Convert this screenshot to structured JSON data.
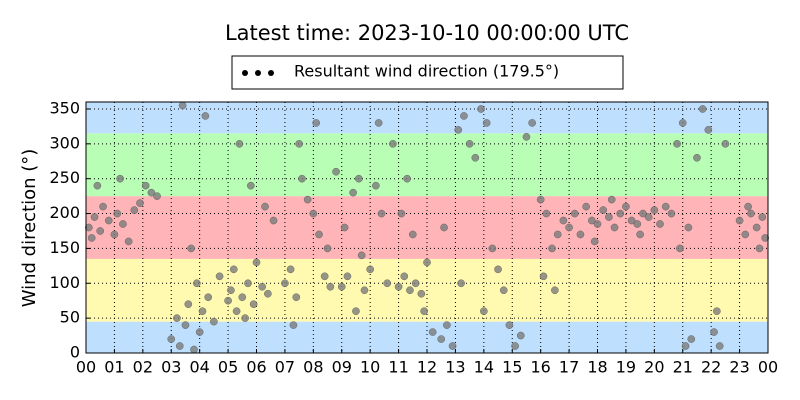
{
  "chart_data": {
    "type": "scatter",
    "title": "Latest time: 2023-10-10 00:00:00 UTC",
    "y_label": "Wind direction (°)",
    "xlim": [
      0,
      24
    ],
    "ylim": [
      0,
      360
    ],
    "xticks": [
      {
        "value": 0,
        "label": "00"
      },
      {
        "value": 1,
        "label": "01"
      },
      {
        "value": 2,
        "label": "02"
      },
      {
        "value": 3,
        "label": "03"
      },
      {
        "value": 4,
        "label": "04"
      },
      {
        "value": 5,
        "label": "05"
      },
      {
        "value": 6,
        "label": "06"
      },
      {
        "value": 7,
        "label": "07"
      },
      {
        "value": 8,
        "label": "08"
      },
      {
        "value": 9,
        "label": "09"
      },
      {
        "value": 10,
        "label": "10"
      },
      {
        "value": 11,
        "label": "11"
      },
      {
        "value": 12,
        "label": "12"
      },
      {
        "value": 13,
        "label": "13"
      },
      {
        "value": 14,
        "label": "14"
      },
      {
        "value": 15,
        "label": "15"
      },
      {
        "value": 16,
        "label": "16"
      },
      {
        "value": 17,
        "label": "17"
      },
      {
        "value": 18,
        "label": "18"
      },
      {
        "value": 19,
        "label": "19"
      },
      {
        "value": 20,
        "label": "20"
      },
      {
        "value": 21,
        "label": "21"
      },
      {
        "value": 22,
        "label": "22"
      },
      {
        "value": 23,
        "label": "23"
      },
      {
        "value": 24,
        "label": "00"
      }
    ],
    "yticks": [
      0,
      50,
      100,
      150,
      200,
      250,
      300,
      350
    ],
    "grid": true,
    "bands": [
      {
        "from": 0,
        "to": 45,
        "color": "#bfdfff"
      },
      {
        "from": 45,
        "to": 135,
        "color": "#fffab0"
      },
      {
        "from": 135,
        "to": 225,
        "color": "#ffb5b8"
      },
      {
        "from": 225,
        "to": 315,
        "color": "#b8ffb5"
      },
      {
        "from": 315,
        "to": 360,
        "color": "#bfdfff"
      }
    ],
    "series": [
      {
        "name": "Resultant wind direction (179.5°)",
        "color": "#7a7a7a",
        "x": [
          0.1,
          0.2,
          0.3,
          0.5,
          0.6,
          0.8,
          1.0,
          1.1,
          1.3,
          1.5,
          1.7,
          1.9,
          2.1,
          2.3,
          0.4,
          1.2,
          2.5,
          3.0,
          3.2,
          3.3,
          3.5,
          3.6,
          3.8,
          3.4,
          3.9,
          4.1,
          4.3,
          4.5,
          4.7,
          4.0,
          3.7,
          4.2,
          5.0,
          5.1,
          5.3,
          5.5,
          5.7,
          5.9,
          5.2,
          5.6,
          6.0,
          6.2,
          6.4,
          5.4,
          6.3,
          5.8,
          6.6,
          7.0,
          7.2,
          7.4,
          7.6,
          7.8,
          8.0,
          8.2,
          8.4,
          8.6,
          7.5,
          8.1,
          8.8,
          7.3,
          8.5,
          9.0,
          9.2,
          9.4,
          9.6,
          9.8,
          10.0,
          10.2,
          10.4,
          10.6,
          9.1,
          9.7,
          10.3,
          9.5,
          11.0,
          11.2,
          11.4,
          11.6,
          11.8,
          12.0,
          11.1,
          11.5,
          11.9,
          12.2,
          11.3,
          10.8,
          12.5,
          12.7,
          12.9,
          13.1,
          13.3,
          13.5,
          13.7,
          13.9,
          14.1,
          14.3,
          14.5,
          14.7,
          14.9,
          15.1,
          15.3,
          15.5,
          15.7,
          13.2,
          14.0,
          12.6,
          16.0,
          16.2,
          16.4,
          16.6,
          16.8,
          16.1,
          16.5,
          17.0,
          17.2,
          17.4,
          17.6,
          17.8,
          18.0,
          18.2,
          18.4,
          18.6,
          18.8,
          19.0,
          19.2,
          19.4,
          19.6,
          19.8,
          20.0,
          20.2,
          20.4,
          17.9,
          18.5,
          19.5,
          20.6,
          20.8,
          21.0,
          21.1,
          21.3,
          21.5,
          21.7,
          21.9,
          22.1,
          22.3,
          22.5,
          22.2,
          21.2,
          20.9,
          23.0,
          23.2,
          23.4,
          23.6,
          23.8,
          23.9,
          23.3,
          23.7
        ],
        "values": [
          180,
          165,
          195,
          175,
          210,
          190,
          170,
          200,
          185,
          160,
          205,
          215,
          240,
          230,
          240,
          250,
          225,
          20,
          50,
          10,
          40,
          70,
          5,
          355,
          100,
          60,
          80,
          45,
          110,
          30,
          150,
          340,
          75,
          90,
          60,
          80,
          100,
          70,
          120,
          50,
          130,
          95,
          85,
          300,
          210,
          240,
          190,
          100,
          120,
          80,
          250,
          220,
          200,
          170,
          110,
          95,
          300,
          330,
          260,
          40,
          150,
          95,
          110,
          230,
          250,
          90,
          120,
          240,
          200,
          100,
          180,
          140,
          330,
          60,
          95,
          110,
          90,
          100,
          85,
          130,
          200,
          170,
          60,
          30,
          250,
          300,
          20,
          40,
          10,
          320,
          340,
          300,
          280,
          350,
          330,
          150,
          120,
          90,
          40,
          10,
          25,
          310,
          330,
          100,
          60,
          180,
          220,
          200,
          150,
          170,
          190,
          110,
          90,
          180,
          200,
          170,
          210,
          190,
          185,
          205,
          195,
          180,
          200,
          210,
          190,
          185,
          200,
          195,
          205,
          185,
          210,
          160,
          220,
          170,
          200,
          300,
          330,
          10,
          20,
          280,
          350,
          320,
          30,
          10,
          300,
          60,
          180,
          150,
          190,
          170,
          200,
          180,
          195,
          165,
          210,
          150
        ]
      }
    ]
  }
}
